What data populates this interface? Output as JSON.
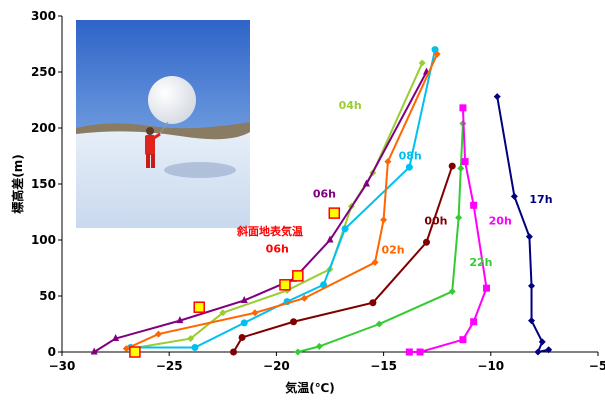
{
  "chart_data": {
    "type": "line",
    "xlabel": "気温(℃)",
    "ylabel": "標高差(m)",
    "xlim": [
      -30,
      -5
    ],
    "ylim": [
      0,
      300
    ],
    "xticks": [
      "−30",
      "−25",
      "−20",
      "−15",
      "−10",
      "−5"
    ],
    "yticks": [
      "0",
      "50",
      "100",
      "150",
      "200",
      "250",
      "300"
    ],
    "grid": false,
    "legend": "none",
    "photo": "person-with-weather-balloon-on-snowfield",
    "series": [
      {
        "name": "04h",
        "color": "#9acd32",
        "marker": "diamond",
        "points": [
          [
            -26.8,
            3
          ],
          [
            -24.0,
            12
          ],
          [
            -22.5,
            35
          ],
          [
            -19.5,
            55
          ],
          [
            -17.5,
            74
          ],
          [
            -16.5,
            130
          ],
          [
            -15.5,
            160
          ],
          [
            -13.2,
            258
          ]
        ]
      },
      {
        "name": "06h",
        "color": "#800080",
        "marker": "triangle",
        "points": [
          [
            -28.5,
            0
          ],
          [
            -27.5,
            12
          ],
          [
            -24.5,
            28
          ],
          [
            -21.5,
            46
          ],
          [
            -19.2,
            65
          ],
          [
            -17.5,
            100
          ],
          [
            -15.8,
            150
          ],
          [
            -13.0,
            250
          ]
        ]
      },
      {
        "name": "08h",
        "color": "#00c0f0",
        "marker": "circle",
        "points": [
          [
            -26.8,
            4
          ],
          [
            -23.8,
            4
          ],
          [
            -21.5,
            26
          ],
          [
            -19.5,
            45
          ],
          [
            -17.8,
            60
          ],
          [
            -16.8,
            110
          ],
          [
            -13.8,
            165
          ],
          [
            -12.6,
            270
          ]
        ]
      },
      {
        "name": "02h",
        "color": "#ff6600",
        "marker": "diamond",
        "points": [
          [
            -27.0,
            3
          ],
          [
            -25.5,
            16
          ],
          [
            -21.0,
            35
          ],
          [
            -18.7,
            48
          ],
          [
            -15.4,
            80
          ],
          [
            -15.0,
            118
          ],
          [
            -14.8,
            170
          ],
          [
            -12.5,
            266
          ]
        ]
      },
      {
        "name": "00h",
        "color": "#800000",
        "marker": "circle",
        "points": [
          [
            -22.0,
            0
          ],
          [
            -21.6,
            13
          ],
          [
            -19.2,
            27
          ],
          [
            -15.5,
            44
          ],
          [
            -13.0,
            98
          ],
          [
            -11.8,
            166
          ]
        ]
      },
      {
        "name": "22h",
        "color": "#33cc33",
        "marker": "diamond",
        "points": [
          [
            -19.0,
            0
          ],
          [
            -18.0,
            5
          ],
          [
            -15.2,
            25
          ],
          [
            -11.8,
            54
          ],
          [
            -11.5,
            120
          ],
          [
            -11.4,
            164
          ],
          [
            -11.3,
            204
          ]
        ]
      },
      {
        "name": "20h",
        "color": "#ff00ff",
        "marker": "square",
        "points": [
          [
            -13.8,
            0
          ],
          [
            -13.3,
            0
          ],
          [
            -11.3,
            11
          ],
          [
            -10.8,
            27
          ],
          [
            -10.2,
            57
          ],
          [
            -10.8,
            131
          ],
          [
            -11.2,
            170
          ],
          [
            -11.3,
            218
          ]
        ]
      },
      {
        "name": "17h",
        "color": "#000080",
        "marker": "diamond",
        "points": [
          [
            -7.3,
            2
          ],
          [
            -7.8,
            0
          ],
          [
            -7.6,
            9
          ],
          [
            -8.1,
            28
          ],
          [
            -8.1,
            59
          ],
          [
            -8.2,
            103
          ],
          [
            -8.9,
            139
          ],
          [
            -9.7,
            228
          ]
        ]
      }
    ],
    "surface_label": "斜面地表気温",
    "surface_label_color": "#ff0000",
    "surface_points": [
      [
        -26.6,
        0
      ],
      [
        -23.6,
        40
      ],
      [
        -19.6,
        60
      ],
      [
        -19.0,
        68
      ],
      [
        -17.3,
        124
      ]
    ],
    "labels": [
      {
        "text": "04h",
        "x": -17.1,
        "y": 217,
        "color": "#9acd32"
      },
      {
        "text": "08h",
        "x": -14.3,
        "y": 172,
        "color": "#00c0f0"
      },
      {
        "text": "06h",
        "x": -18.3,
        "y": 138,
        "color": "#800080"
      },
      {
        "text": "00h",
        "x": -13.1,
        "y": 114,
        "color": "#800000"
      },
      {
        "text": "20h",
        "x": -10.1,
        "y": 114,
        "color": "#ff00ff"
      },
      {
        "text": "17h",
        "x": -8.2,
        "y": 133,
        "color": "#000080"
      },
      {
        "text": "02h",
        "x": -15.1,
        "y": 88,
        "color": "#ff6600"
      },
      {
        "text": "22h",
        "x": -11.0,
        "y": 77,
        "color": "#33cc33"
      },
      {
        "text": "06h",
        "x": -20.5,
        "y": 89,
        "color": "#ff0000"
      }
    ]
  }
}
